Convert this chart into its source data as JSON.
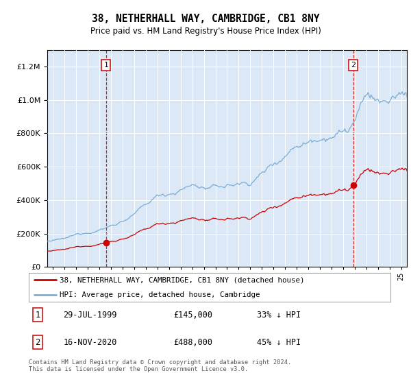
{
  "title": "38, NETHERHALL WAY, CAMBRIDGE, CB1 8NY",
  "subtitle": "Price paid vs. HM Land Registry's House Price Index (HPI)",
  "legend_label_red": "38, NETHERHALL WAY, CAMBRIDGE, CB1 8NY (detached house)",
  "legend_label_blue": "HPI: Average price, detached house, Cambridge",
  "purchase1_date_label": "29-JUL-1999",
  "purchase1_price": 145000,
  "purchase1_price_label": "£145,000",
  "purchase1_pct_label": "33% ↓ HPI",
  "purchase2_date_label": "16-NOV-2020",
  "purchase2_price": 488000,
  "purchase2_price_label": "£488,000",
  "purchase2_pct_label": "45% ↓ HPI",
  "purchase1_year": 1999.57,
  "purchase2_year": 2020.88,
  "ylim_max": 1300000,
  "xlim_start": 1994.5,
  "xlim_end": 2025.5,
  "background_color": "#dce8f5",
  "red_color": "#cc0000",
  "blue_color": "#7aadd4",
  "footer_text": "Contains HM Land Registry data © Crown copyright and database right 2024.\nThis data is licensed under the Open Government Licence v3.0."
}
